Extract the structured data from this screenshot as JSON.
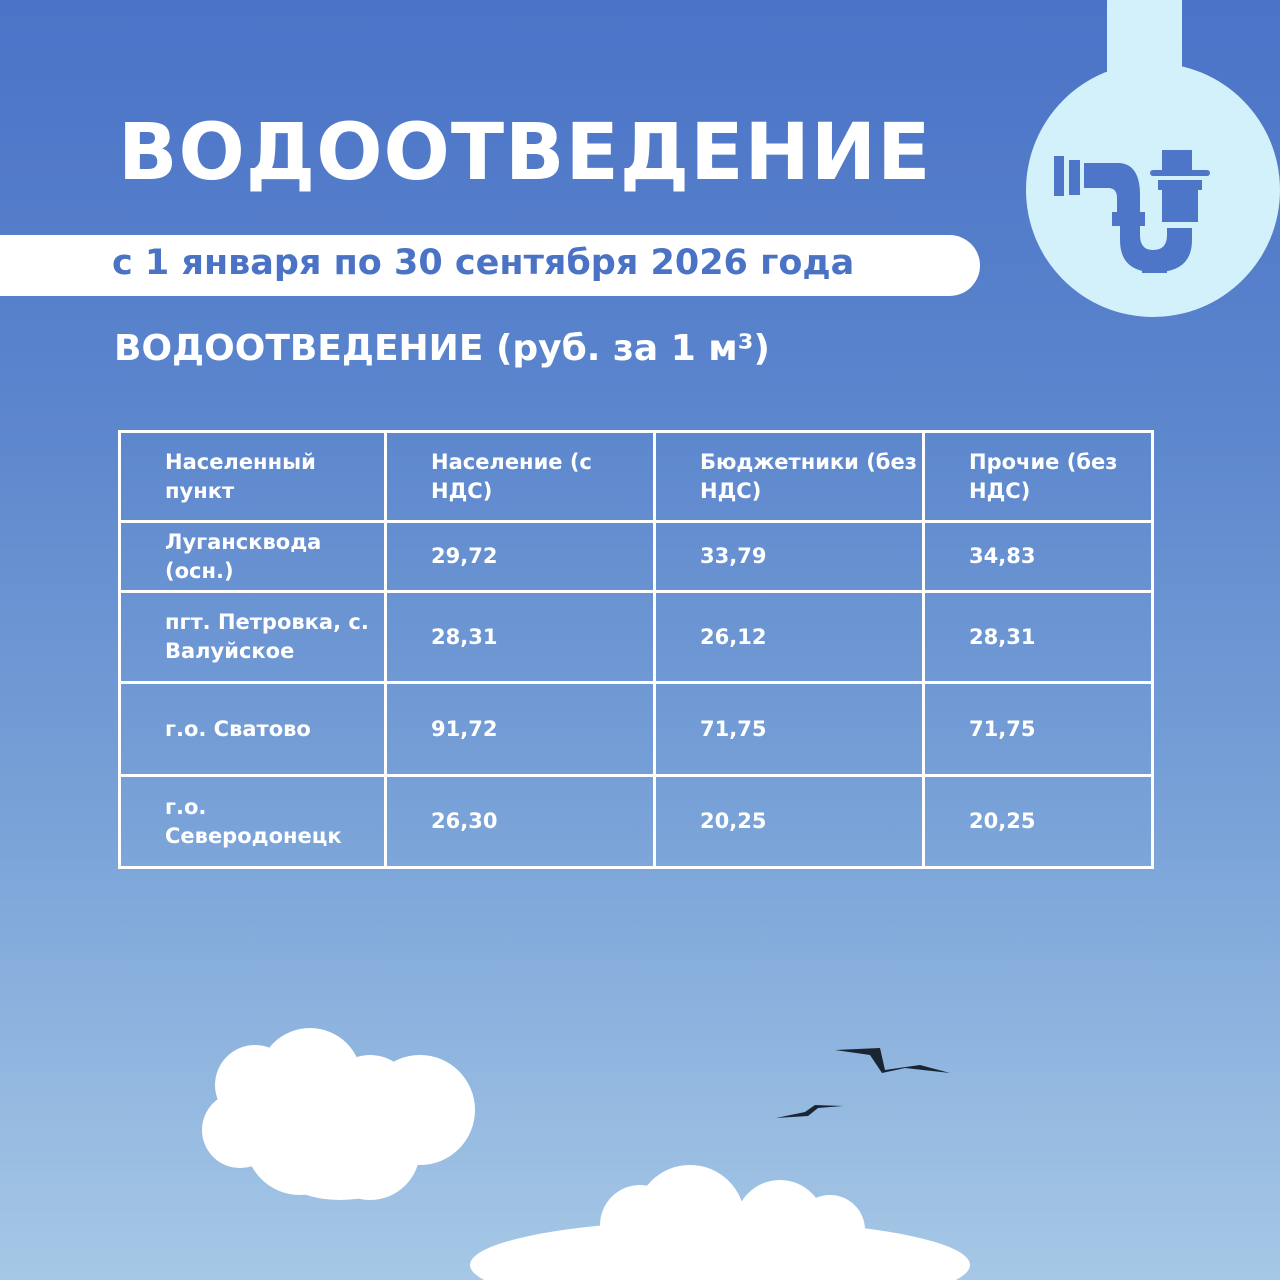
{
  "header": {
    "title": "ВОДООТВЕДЕНИЕ",
    "period": "с 1 января по 30 сентября 2026 года",
    "subtitle": "ВОДООТВЕДЕНИЕ (руб. за 1 м³)"
  },
  "icon": "sink-pipe-icon",
  "colors": {
    "accent": "#4a73c5",
    "badge_bg": "#d2f1fb"
  },
  "table": {
    "headers": [
      "Населенный пункт",
      "Население (с НДС)",
      "Бюджетники (без НДС)",
      "Прочие (без НДС)"
    ],
    "rows": [
      [
        "Лугансквода (осн.)",
        "29,72",
        "33,79",
        "34,83"
      ],
      [
        "пгт. Петровка, с. Валуйское",
        "28,31",
        "26,12",
        "28,31"
      ],
      [
        "г.о. Сватово",
        "91,72",
        "71,75",
        "71,75"
      ],
      [
        "г.о. Северодонецк",
        "26,30",
        "20,25",
        "20,25"
      ]
    ]
  }
}
